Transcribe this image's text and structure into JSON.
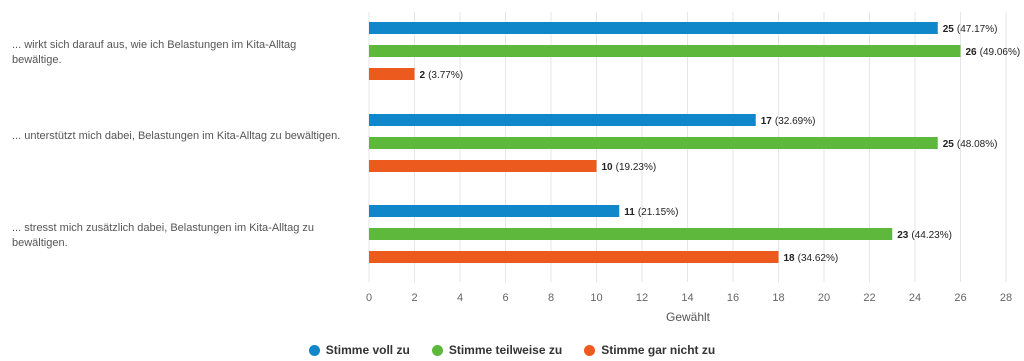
{
  "chart_data": {
    "type": "bar",
    "orientation": "horizontal",
    "categories": [
      "... wirkt sich darauf aus, wie ich Belastungen im Kita-Alltag bewältige.",
      "... unterstützt mich dabei, Belastungen im Kita-Alltag zu bewältigen.",
      "... stresst mich zusätzlich dabei, Belastungen im Kita-Alltag zu bewältigen."
    ],
    "series": [
      {
        "name": "Stimme voll zu",
        "color": "#0f87c8",
        "values": [
          25,
          17,
          11
        ],
        "labels": [
          "(47.17%)",
          "(32.69%)",
          "(21.15%)"
        ]
      },
      {
        "name": "Stimme teilweise zu",
        "color": "#5db83b",
        "values": [
          26,
          25,
          23
        ],
        "labels": [
          "(49.06%)",
          "(48.08%)",
          "(44.23%)"
        ]
      },
      {
        "name": "Stimme gar nicht zu",
        "color": "#ec5a1e",
        "values": [
          2,
          10,
          18
        ],
        "labels": [
          "(3.77%)",
          "(19.23%)",
          "(34.62%)"
        ]
      }
    ],
    "xlabel": "Gewählt",
    "xlim": [
      0,
      28
    ],
    "xticks": [
      0,
      2,
      4,
      6,
      8,
      10,
      12,
      14,
      16,
      18,
      20,
      22,
      24,
      26,
      28
    ],
    "grid": true,
    "legend": "bottom"
  }
}
